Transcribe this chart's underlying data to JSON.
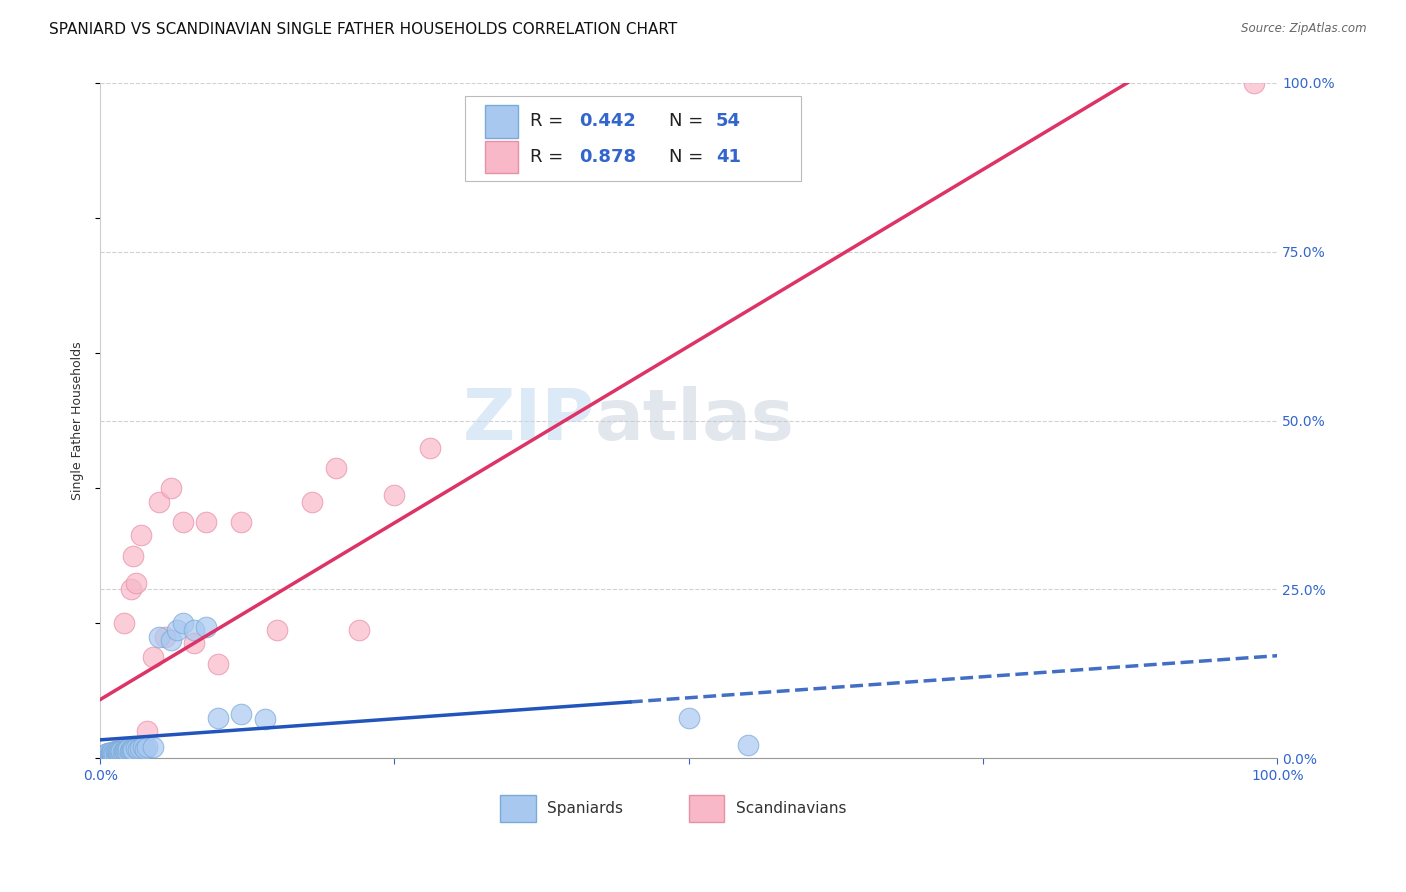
{
  "title": "SPANIARD VS SCANDINAVIAN SINGLE FATHER HOUSEHOLDS CORRELATION CHART",
  "source": "Source: ZipAtlas.com",
  "ylabel": "Single Father Households",
  "xlim": [
    0,
    1
  ],
  "ylim": [
    0,
    1
  ],
  "ytick_labels_right": [
    "0.0%",
    "25.0%",
    "50.0%",
    "75.0%",
    "100.0%"
  ],
  "ytick_positions_right": [
    0.0,
    0.25,
    0.5,
    0.75,
    1.0
  ],
  "watermark_zip": "ZIP",
  "watermark_atlas": "atlas",
  "legend_r1": "0.442",
  "legend_n1": "54",
  "legend_r2": "0.878",
  "legend_n2": "41",
  "spaniards_color": "#a8c8f0",
  "scandinavians_color": "#f8b8c8",
  "spaniards_edge_color": "#7aaad8",
  "scandinavians_edge_color": "#e890a8",
  "spaniards_line_color": "#2255bb",
  "scandinavians_line_color": "#dd3366",
  "grid_color": "#cccccc",
  "background_color": "#ffffff",
  "spaniards_x": [
    0.002,
    0.003,
    0.004,
    0.004,
    0.005,
    0.005,
    0.006,
    0.006,
    0.007,
    0.007,
    0.008,
    0.008,
    0.009,
    0.009,
    0.01,
    0.01,
    0.011,
    0.012,
    0.013,
    0.013,
    0.014,
    0.015,
    0.015,
    0.016,
    0.017,
    0.018,
    0.019,
    0.02,
    0.021,
    0.022,
    0.023,
    0.024,
    0.025,
    0.026,
    0.027,
    0.028,
    0.03,
    0.032,
    0.034,
    0.036,
    0.038,
    0.04,
    0.045,
    0.05,
    0.06,
    0.065,
    0.07,
    0.08,
    0.09,
    0.1,
    0.12,
    0.14,
    0.5,
    0.55
  ],
  "spaniards_y": [
    0.002,
    0.003,
    0.003,
    0.005,
    0.004,
    0.006,
    0.004,
    0.007,
    0.005,
    0.008,
    0.005,
    0.007,
    0.006,
    0.008,
    0.006,
    0.009,
    0.007,
    0.008,
    0.007,
    0.01,
    0.009,
    0.008,
    0.011,
    0.009,
    0.01,
    0.01,
    0.009,
    0.01,
    0.011,
    0.012,
    0.01,
    0.013,
    0.011,
    0.012,
    0.013,
    0.012,
    0.015,
    0.014,
    0.015,
    0.016,
    0.014,
    0.016,
    0.017,
    0.18,
    0.175,
    0.19,
    0.2,
    0.19,
    0.195,
    0.06,
    0.065,
    0.058,
    0.06,
    0.02
  ],
  "scandinavians_x": [
    0.002,
    0.003,
    0.004,
    0.005,
    0.006,
    0.007,
    0.008,
    0.009,
    0.01,
    0.011,
    0.012,
    0.013,
    0.014,
    0.015,
    0.016,
    0.017,
    0.018,
    0.02,
    0.022,
    0.024,
    0.026,
    0.028,
    0.03,
    0.035,
    0.04,
    0.045,
    0.05,
    0.055,
    0.06,
    0.07,
    0.08,
    0.09,
    0.1,
    0.12,
    0.15,
    0.18,
    0.2,
    0.22,
    0.25,
    0.28,
    0.98
  ],
  "scandinavians_y": [
    0.003,
    0.005,
    0.004,
    0.006,
    0.005,
    0.008,
    0.006,
    0.008,
    0.007,
    0.009,
    0.008,
    0.01,
    0.009,
    0.01,
    0.009,
    0.011,
    0.01,
    0.2,
    0.012,
    0.013,
    0.25,
    0.3,
    0.26,
    0.33,
    0.04,
    0.15,
    0.38,
    0.18,
    0.4,
    0.35,
    0.17,
    0.35,
    0.14,
    0.35,
    0.19,
    0.38,
    0.43,
    0.19,
    0.39,
    0.46,
    1.0
  ],
  "title_fontsize": 11,
  "axis_label_fontsize": 9,
  "tick_fontsize": 10,
  "legend_fontsize": 13
}
